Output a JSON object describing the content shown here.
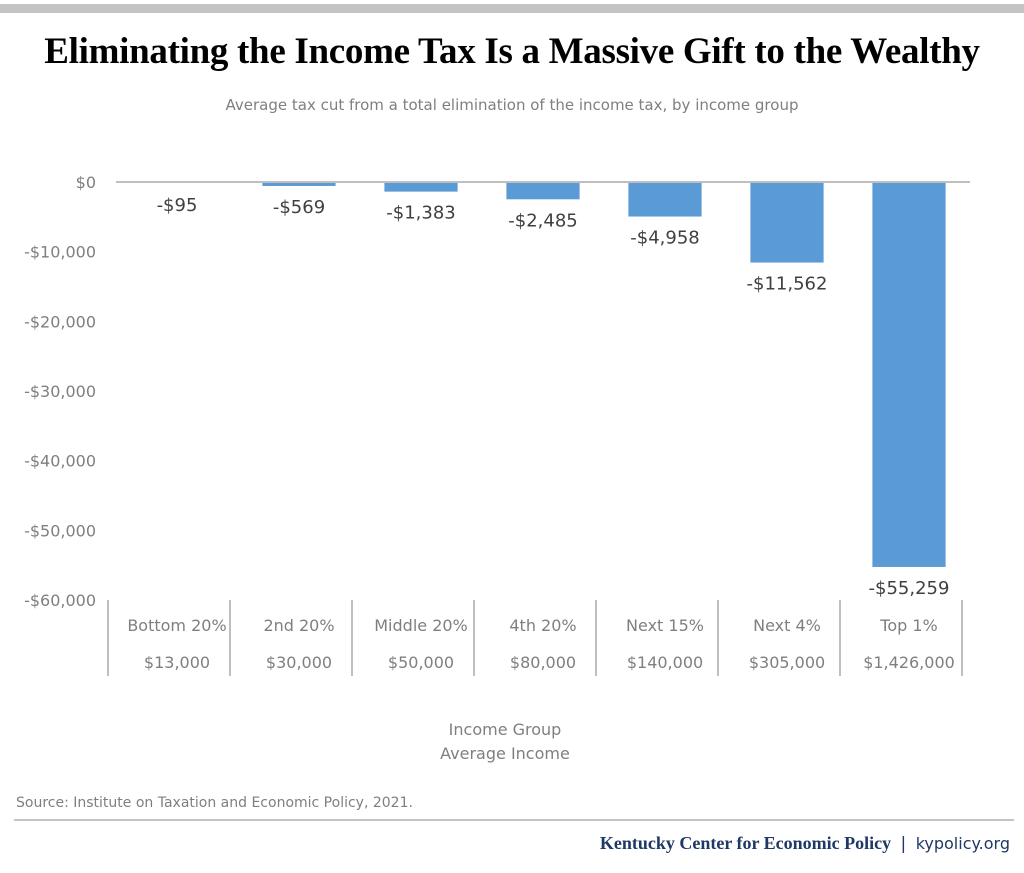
{
  "header": {
    "title": "Eliminating the Income Tax Is a Massive Gift to the Wealthy"
  },
  "chart_data": {
    "type": "bar",
    "title": "Eliminating the Income Tax Is a Massive Gift to the Wealthy",
    "subtitle": "Average tax cut from a total elimination of the income tax, by income group",
    "categories": [
      "Bottom 20%",
      "2nd 20%",
      "Middle 20%",
      "4th 20%",
      "Next 15%",
      "Next 4%",
      "Top 1%"
    ],
    "average_income": [
      "$13,000",
      "$30,000",
      "$50,000",
      "$80,000",
      "$140,000",
      "$305,000",
      "$1,426,000"
    ],
    "values": [
      -95,
      -569,
      -1383,
      -2485,
      -4958,
      -11562,
      -55259
    ],
    "data_labels": [
      "-$95",
      "-$569",
      "-$1,383",
      "-$2,485",
      "-$4,958",
      "-$11,562",
      "-$55,259"
    ],
    "xlabel_lines": [
      "Income Group",
      "Average Income"
    ],
    "ylabel": "",
    "ylim": [
      -60000,
      0
    ],
    "yticks": [
      0,
      -10000,
      -20000,
      -30000,
      -40000,
      -50000,
      -60000
    ],
    "ytick_labels": [
      "$0",
      "-$10,000",
      "-$20,000",
      "-$30,000",
      "-$40,000",
      "-$50,000",
      "-$60,000"
    ],
    "bar_color": "#5b9bd5",
    "grid": false,
    "legend": "none"
  },
  "footer": {
    "source": "Source: Institute on Taxation and Economic Policy, 2021.",
    "org": "Kentucky Center for Economic Policy",
    "separator": "|",
    "site": "kypolicy.org"
  }
}
